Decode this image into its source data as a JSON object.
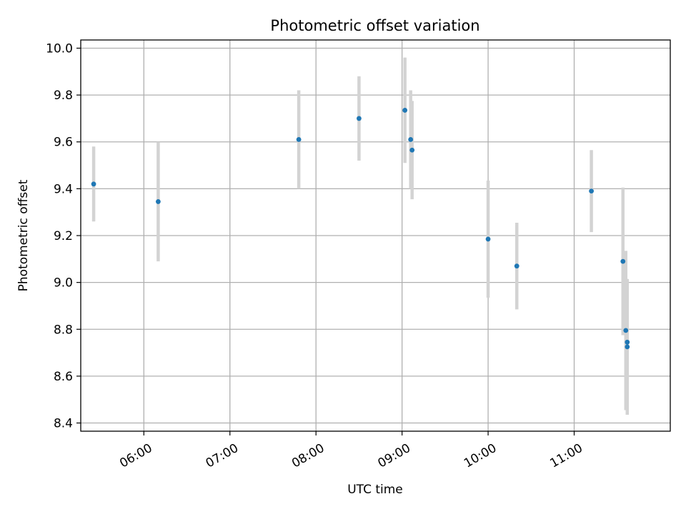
{
  "chart_data": {
    "type": "scatter",
    "title": "Photometric offset variation",
    "xlabel": "UTC time",
    "ylabel": "Photometric offset",
    "x_ticks": [
      "06:00",
      "07:00",
      "08:00",
      "09:00",
      "10:00",
      "11:00"
    ],
    "y_ticks": [
      "8.4",
      "8.6",
      "8.8",
      "9.0",
      "9.2",
      "9.4",
      "9.6",
      "9.8",
      "10.0"
    ],
    "xlim": [
      "05:16",
      "12:07"
    ],
    "ylim": [
      8.365,
      10.035
    ],
    "grid": true,
    "marker_color": "#1f77b4",
    "errorbar_color": "#d3d3d3",
    "points": [
      {
        "x": "05:25",
        "y": 9.42,
        "err": 0.16
      },
      {
        "x": "06:10",
        "y": 9.345,
        "err": 0.255
      },
      {
        "x": "07:48",
        "y": 9.61,
        "err": 0.21
      },
      {
        "x": "08:30",
        "y": 9.7,
        "err": 0.18
      },
      {
        "x": "09:02",
        "y": 9.735,
        "err": 0.225
      },
      {
        "x": "09:06",
        "y": 9.61,
        "err": 0.21
      },
      {
        "x": "09:07",
        "y": 9.565,
        "err": 0.21
      },
      {
        "x": "10:00",
        "y": 9.185,
        "err": 0.25
      },
      {
        "x": "10:20",
        "y": 9.07,
        "err": 0.185
      },
      {
        "x": "11:12",
        "y": 9.39,
        "err": 0.175
      },
      {
        "x": "11:34",
        "y": 9.09,
        "err": 0.315
      },
      {
        "x": "11:36",
        "y": 8.795,
        "err": 0.34
      },
      {
        "x": "11:37",
        "y": 8.745,
        "err": 0.26
      },
      {
        "x": "11:37",
        "y": 8.725,
        "err": 0.29
      }
    ]
  }
}
